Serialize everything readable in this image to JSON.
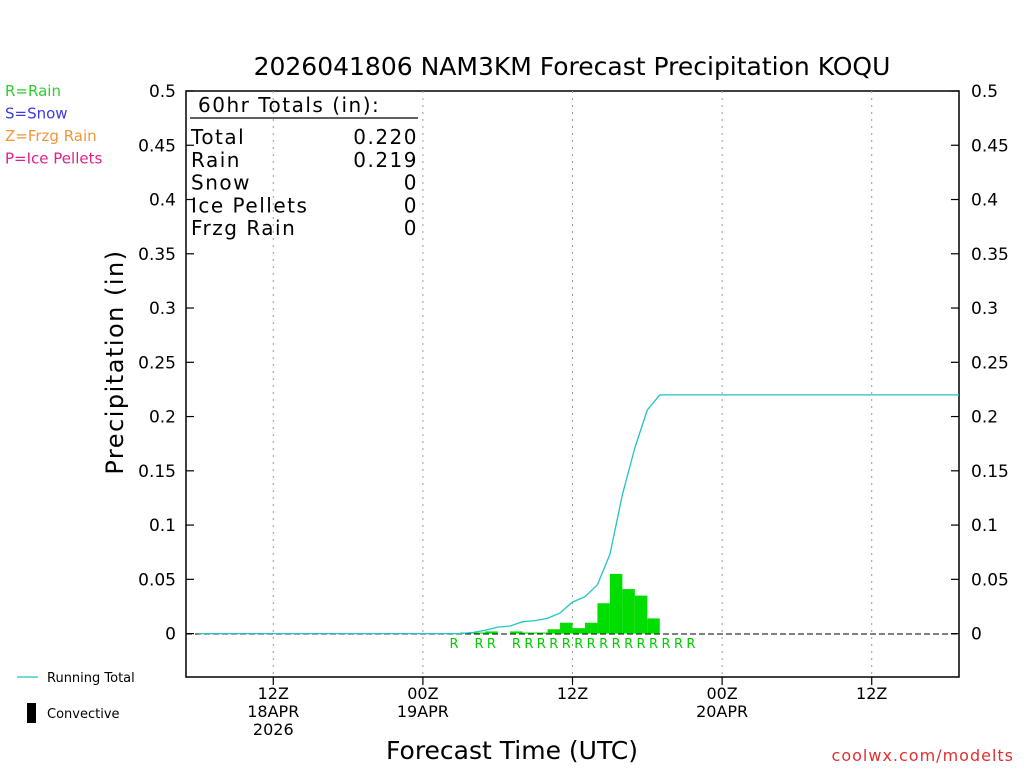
{
  "chart_data": {
    "type": "bar",
    "title": "2026041806 NAM3KM Forecast Precipitation KOQU",
    "xlabel": "Forecast Time (UTC)",
    "ylabel": "Precipitation (in)",
    "ylim": [
      -0.04,
      0.5
    ],
    "yticks": [
      "0.5",
      "0.45",
      "0.4",
      "0.35",
      "0.3",
      "0.25",
      "0.2",
      "0.15",
      "0.1",
      "0.05",
      "0"
    ],
    "ytick_values": [
      0.5,
      0.45,
      0.4,
      0.35,
      0.3,
      0.25,
      0.2,
      0.15,
      0.1,
      0.05,
      0
    ],
    "xlim_hours": [
      -1,
      61
    ],
    "xticks": [
      {
        "hour": 6,
        "lines": [
          "12Z",
          "18APR",
          "2026"
        ]
      },
      {
        "hour": 18,
        "lines": [
          "00Z",
          "19APR"
        ]
      },
      {
        "hour": 30,
        "lines": [
          "12Z"
        ]
      },
      {
        "hour": 42,
        "lines": [
          "00Z",
          "20APR"
        ]
      },
      {
        "hour": 54,
        "lines": [
          "12Z"
        ]
      }
    ],
    "grid": "vertical-dotted",
    "bar_hours": [
      22,
      23,
      24,
      25,
      26,
      27,
      28,
      29,
      30,
      31,
      32,
      33,
      34,
      35,
      36,
      37,
      38,
      39,
      40
    ],
    "bar_values": [
      0.001,
      0.001,
      0.002,
      0.0,
      0.002,
      0.001,
      0.001,
      0.004,
      0.01,
      0.005,
      0.01,
      0.028,
      0.055,
      0.041,
      0.035,
      0.014,
      0.0,
      0.0,
      0.0
    ],
    "ptype_hours": [
      21,
      23,
      24,
      26,
      27,
      28,
      29,
      30,
      31,
      32,
      33,
      34,
      35,
      36,
      37,
      38,
      39,
      40
    ],
    "ptype_letter": "R",
    "running_total": {
      "name": "Running Total",
      "x": [
        0,
        21,
        22,
        23,
        24,
        25,
        26,
        27,
        28,
        29,
        30,
        31,
        32,
        33,
        34,
        35,
        36,
        37,
        38,
        39,
        40,
        41,
        42,
        61
      ],
      "values": [
        0,
        0,
        0.001,
        0.003,
        0.006,
        0.007,
        0.011,
        0.012,
        0.014,
        0.019,
        0.029,
        0.034,
        0.045,
        0.073,
        0.128,
        0.171,
        0.206,
        0.22,
        0.22,
        0.22,
        0.22,
        0.22,
        0.22,
        0.22
      ]
    },
    "totals": {
      "header": "60hr Totals (in):",
      "rows": [
        {
          "label": "Total",
          "value": "0.220"
        },
        {
          "label": "Rain",
          "value": "0.219"
        },
        {
          "label": "Snow",
          "value": "0"
        },
        {
          "label": "Ice Pellets",
          "value": "0"
        },
        {
          "label": "Frzg Rain",
          "value": "0"
        }
      ]
    },
    "type_legend": [
      {
        "text": "R=Rain",
        "color": "#2ecc2e"
      },
      {
        "text": "S=Snow",
        "color": "#3a3ae6"
      },
      {
        "text": "Z=Frzg Rain",
        "color": "#f0963c"
      },
      {
        "text": "P=Ice Pellets",
        "color": "#e0208a"
      }
    ],
    "legend": {
      "running_total": "Running Total",
      "convective": "Convective"
    },
    "credit": "coolwx.com/modelts",
    "colors": {
      "bars": "#00dd00",
      "line": "#22c4c4",
      "ptype_letters": "#00cc00",
      "credit": "#e03030",
      "grid": "#9a9a9a"
    }
  }
}
